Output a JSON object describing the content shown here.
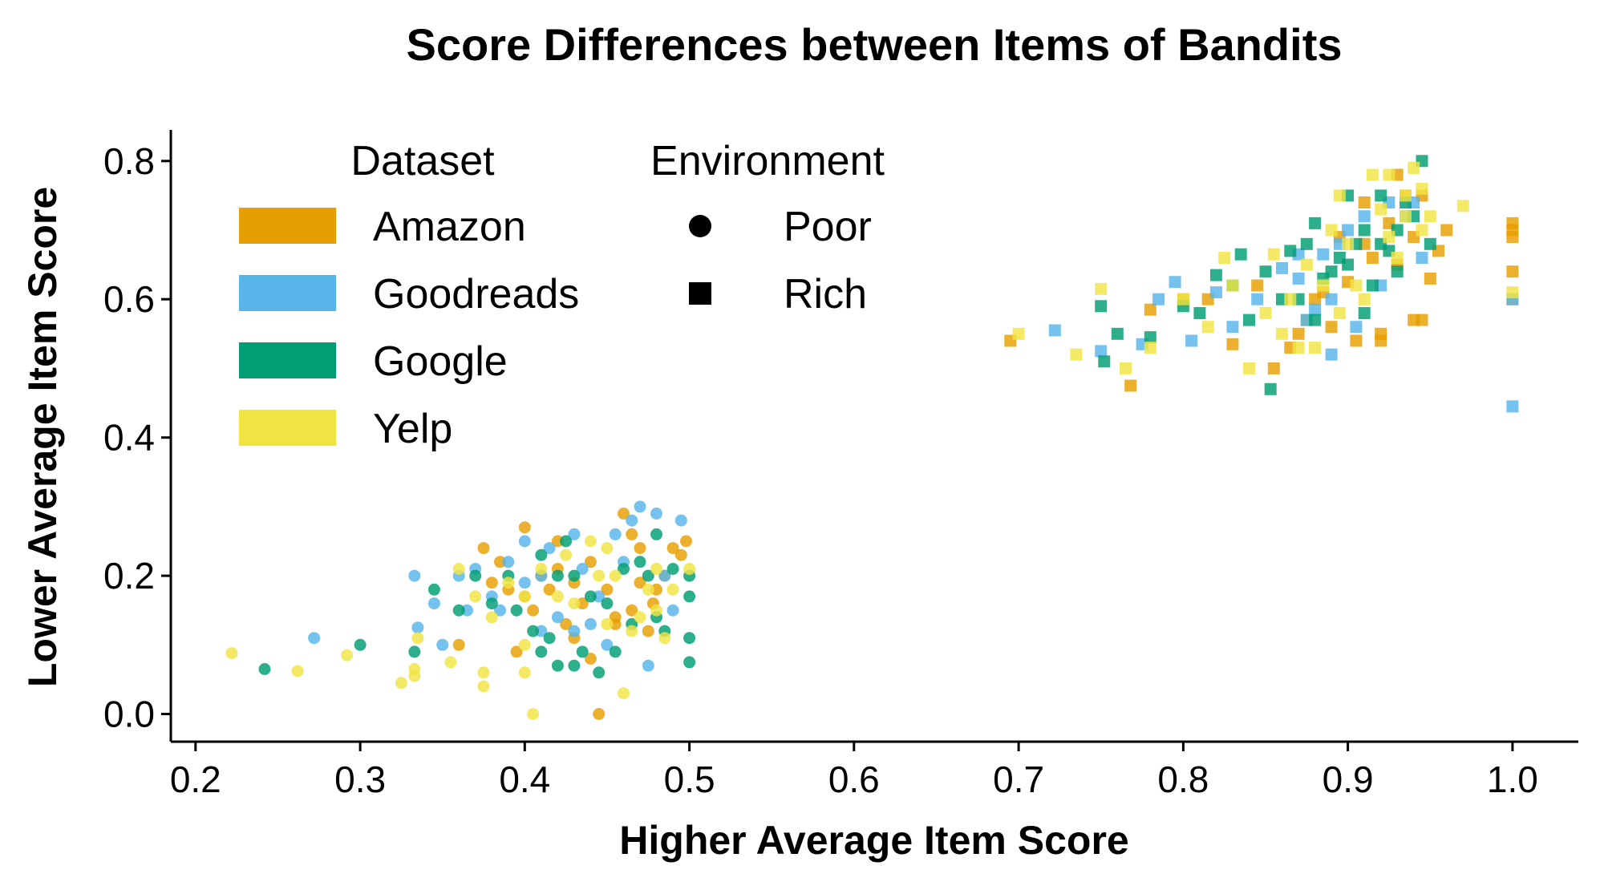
{
  "chart_data": {
    "type": "scatter",
    "title": "Score Differences between Items of Bandits",
    "xlabel": "Higher Average Item Score",
    "ylabel": "Lower Average Item Score",
    "xlim": [
      0.185,
      1.04
    ],
    "ylim": [
      -0.04,
      0.845
    ],
    "xticks": [
      "0.2",
      "0.3",
      "0.4",
      "0.5",
      "0.6",
      "0.7",
      "0.8",
      "0.9",
      "1.0"
    ],
    "yticks": [
      "0.0",
      "0.2",
      "0.4",
      "0.6",
      "0.8"
    ],
    "grid": false,
    "legend": {
      "placement": "top-left",
      "dataset_title": "Dataset",
      "environment_title": "Environment",
      "datasets": [
        {
          "name": "Amazon",
          "color": "#E69F00"
        },
        {
          "name": "Goodreads",
          "color": "#56B4E9"
        },
        {
          "name": "Google",
          "color": "#009E73"
        },
        {
          "name": "Yelp",
          "color": "#F0E442"
        }
      ],
      "environments": [
        {
          "name": "Poor",
          "marker": "circle"
        },
        {
          "name": "Rich",
          "marker": "square"
        }
      ]
    },
    "series": [
      {
        "name": "Amazon",
        "environment": "Poor",
        "color": "#E69F00",
        "points": [
          [
            0.375,
            0.24
          ],
          [
            0.385,
            0.22
          ],
          [
            0.39,
            0.18
          ],
          [
            0.4,
            0.17
          ],
          [
            0.405,
            0.15
          ],
          [
            0.41,
            0.2
          ],
          [
            0.415,
            0.18
          ],
          [
            0.42,
            0.21
          ],
          [
            0.425,
            0.13
          ],
          [
            0.43,
            0.19
          ],
          [
            0.435,
            0.16
          ],
          [
            0.44,
            0.22
          ],
          [
            0.445,
            0.0
          ],
          [
            0.45,
            0.18
          ],
          [
            0.455,
            0.14
          ],
          [
            0.46,
            0.29
          ],
          [
            0.465,
            0.15
          ],
          [
            0.47,
            0.24
          ],
          [
            0.475,
            0.12
          ],
          [
            0.48,
            0.18
          ],
          [
            0.485,
            0.2
          ],
          [
            0.49,
            0.24
          ],
          [
            0.495,
            0.23
          ],
          [
            0.498,
            0.25
          ],
          [
            0.4,
            0.27
          ],
          [
            0.42,
            0.25
          ],
          [
            0.43,
            0.11
          ],
          [
            0.44,
            0.08
          ],
          [
            0.455,
            0.13
          ],
          [
            0.47,
            0.19
          ],
          [
            0.36,
            0.1
          ],
          [
            0.38,
            0.19
          ],
          [
            0.395,
            0.09
          ],
          [
            0.465,
            0.26
          ],
          [
            0.478,
            0.16
          ]
        ]
      },
      {
        "name": "Goodreads",
        "environment": "Poor",
        "color": "#56B4E9",
        "points": [
          [
            0.272,
            0.11
          ],
          [
            0.333,
            0.2
          ],
          [
            0.335,
            0.125
          ],
          [
            0.345,
            0.16
          ],
          [
            0.35,
            0.1
          ],
          [
            0.36,
            0.2
          ],
          [
            0.365,
            0.15
          ],
          [
            0.37,
            0.21
          ],
          [
            0.38,
            0.17
          ],
          [
            0.39,
            0.22
          ],
          [
            0.4,
            0.25
          ],
          [
            0.41,
            0.2
          ],
          [
            0.415,
            0.24
          ],
          [
            0.42,
            0.14
          ],
          [
            0.43,
            0.26
          ],
          [
            0.435,
            0.21
          ],
          [
            0.44,
            0.13
          ],
          [
            0.445,
            0.17
          ],
          [
            0.455,
            0.26
          ],
          [
            0.46,
            0.22
          ],
          [
            0.47,
            0.3
          ],
          [
            0.475,
            0.07
          ],
          [
            0.48,
            0.29
          ],
          [
            0.485,
            0.2
          ],
          [
            0.49,
            0.15
          ],
          [
            0.495,
            0.28
          ],
          [
            0.43,
            0.12
          ],
          [
            0.45,
            0.1
          ],
          [
            0.465,
            0.28
          ],
          [
            0.41,
            0.12
          ],
          [
            0.4,
            0.19
          ],
          [
            0.385,
            0.15
          ]
        ]
      },
      {
        "name": "Google",
        "environment": "Poor",
        "color": "#009E73",
        "points": [
          [
            0.242,
            0.065
          ],
          [
            0.3,
            0.1
          ],
          [
            0.333,
            0.09
          ],
          [
            0.345,
            0.18
          ],
          [
            0.36,
            0.15
          ],
          [
            0.37,
            0.2
          ],
          [
            0.38,
            0.16
          ],
          [
            0.39,
            0.2
          ],
          [
            0.395,
            0.15
          ],
          [
            0.405,
            0.12
          ],
          [
            0.41,
            0.09
          ],
          [
            0.41,
            0.23
          ],
          [
            0.415,
            0.11
          ],
          [
            0.42,
            0.07
          ],
          [
            0.425,
            0.25
          ],
          [
            0.43,
            0.2
          ],
          [
            0.435,
            0.09
          ],
          [
            0.44,
            0.17
          ],
          [
            0.445,
            0.06
          ],
          [
            0.45,
            0.16
          ],
          [
            0.455,
            0.09
          ],
          [
            0.46,
            0.21
          ],
          [
            0.465,
            0.13
          ],
          [
            0.47,
            0.22
          ],
          [
            0.475,
            0.2
          ],
          [
            0.48,
            0.26
          ],
          [
            0.485,
            0.12
          ],
          [
            0.49,
            0.21
          ],
          [
            0.5,
            0.2
          ],
          [
            0.5,
            0.17
          ],
          [
            0.5,
            0.11
          ],
          [
            0.5,
            0.075
          ],
          [
            0.42,
            0.2
          ],
          [
            0.43,
            0.07
          ],
          [
            0.48,
            0.14
          ]
        ]
      },
      {
        "name": "Yelp",
        "environment": "Poor",
        "color": "#F0E442",
        "points": [
          [
            0.222,
            0.088
          ],
          [
            0.262,
            0.062
          ],
          [
            0.292,
            0.085
          ],
          [
            0.325,
            0.045
          ],
          [
            0.333,
            0.065
          ],
          [
            0.333,
            0.055
          ],
          [
            0.335,
            0.11
          ],
          [
            0.355,
            0.075
          ],
          [
            0.36,
            0.21
          ],
          [
            0.37,
            0.17
          ],
          [
            0.375,
            0.04
          ],
          [
            0.375,
            0.06
          ],
          [
            0.38,
            0.14
          ],
          [
            0.39,
            0.19
          ],
          [
            0.4,
            0.17
          ],
          [
            0.4,
            0.06
          ],
          [
            0.405,
            0.0
          ],
          [
            0.41,
            0.21
          ],
          [
            0.42,
            0.17
          ],
          [
            0.425,
            0.23
          ],
          [
            0.43,
            0.16
          ],
          [
            0.44,
            0.25
          ],
          [
            0.445,
            0.2
          ],
          [
            0.45,
            0.13
          ],
          [
            0.455,
            0.2
          ],
          [
            0.46,
            0.03
          ],
          [
            0.465,
            0.12
          ],
          [
            0.47,
            0.14
          ],
          [
            0.475,
            0.18
          ],
          [
            0.48,
            0.15
          ],
          [
            0.485,
            0.11
          ],
          [
            0.49,
            0.18
          ],
          [
            0.5,
            0.21
          ],
          [
            0.4,
            0.1
          ],
          [
            0.45,
            0.24
          ],
          [
            0.48,
            0.21
          ]
        ]
      },
      {
        "name": "Amazon",
        "environment": "Rich",
        "color": "#E69F00",
        "points": [
          [
            0.695,
            0.54
          ],
          [
            0.768,
            0.475
          ],
          [
            0.78,
            0.585
          ],
          [
            0.8,
            0.6
          ],
          [
            0.815,
            0.6
          ],
          [
            0.83,
            0.535
          ],
          [
            0.845,
            0.62
          ],
          [
            0.855,
            0.5
          ],
          [
            0.865,
            0.53
          ],
          [
            0.87,
            0.55
          ],
          [
            0.875,
            0.57
          ],
          [
            0.88,
            0.6
          ],
          [
            0.885,
            0.61
          ],
          [
            0.89,
            0.56
          ],
          [
            0.9,
            0.625
          ],
          [
            0.905,
            0.54
          ],
          [
            0.91,
            0.68
          ],
          [
            0.915,
            0.66
          ],
          [
            0.92,
            0.55
          ],
          [
            0.925,
            0.71
          ],
          [
            0.93,
            0.65
          ],
          [
            0.935,
            0.75
          ],
          [
            0.94,
            0.69
          ],
          [
            0.945,
            0.57
          ],
          [
            0.945,
            0.75
          ],
          [
            0.95,
            0.63
          ],
          [
            0.955,
            0.67
          ],
          [
            0.96,
            0.7
          ],
          [
            1.0,
            0.71
          ],
          [
            1.0,
            0.7
          ],
          [
            1.0,
            0.69
          ],
          [
            1.0,
            0.64
          ],
          [
            1.0,
            0.6
          ],
          [
            0.91,
            0.74
          ],
          [
            0.92,
            0.54
          ],
          [
            0.93,
            0.78
          ],
          [
            0.94,
            0.57
          ],
          [
            0.895,
            0.69
          ]
        ]
      },
      {
        "name": "Goodreads",
        "environment": "Rich",
        "color": "#56B4E9",
        "points": [
          [
            0.722,
            0.555
          ],
          [
            0.75,
            0.525
          ],
          [
            0.775,
            0.535
          ],
          [
            0.785,
            0.6
          ],
          [
            0.795,
            0.625
          ],
          [
            0.805,
            0.54
          ],
          [
            0.82,
            0.61
          ],
          [
            0.83,
            0.56
          ],
          [
            0.845,
            0.6
          ],
          [
            0.86,
            0.645
          ],
          [
            0.87,
            0.665
          ],
          [
            0.875,
            0.57
          ],
          [
            0.88,
            0.585
          ],
          [
            0.885,
            0.665
          ],
          [
            0.89,
            0.52
          ],
          [
            0.895,
            0.68
          ],
          [
            0.9,
            0.7
          ],
          [
            0.905,
            0.56
          ],
          [
            0.91,
            0.72
          ],
          [
            0.92,
            0.62
          ],
          [
            0.925,
            0.74
          ],
          [
            0.935,
            0.72
          ],
          [
            0.94,
            0.74
          ],
          [
            0.945,
            0.66
          ],
          [
            1.0,
            0.6
          ],
          [
            1.0,
            0.445
          ],
          [
            0.87,
            0.63
          ],
          [
            0.89,
            0.6
          ]
        ]
      },
      {
        "name": "Google",
        "environment": "Rich",
        "color": "#009E73",
        "points": [
          [
            0.75,
            0.59
          ],
          [
            0.752,
            0.51
          ],
          [
            0.76,
            0.55
          ],
          [
            0.78,
            0.545
          ],
          [
            0.8,
            0.59
          ],
          [
            0.81,
            0.58
          ],
          [
            0.82,
            0.635
          ],
          [
            0.83,
            0.62
          ],
          [
            0.835,
            0.665
          ],
          [
            0.84,
            0.57
          ],
          [
            0.85,
            0.64
          ],
          [
            0.853,
            0.47
          ],
          [
            0.86,
            0.6
          ],
          [
            0.865,
            0.67
          ],
          [
            0.875,
            0.68
          ],
          [
            0.88,
            0.57
          ],
          [
            0.885,
            0.63
          ],
          [
            0.89,
            0.64
          ],
          [
            0.895,
            0.66
          ],
          [
            0.9,
            0.65
          ],
          [
            0.905,
            0.68
          ],
          [
            0.91,
            0.7
          ],
          [
            0.915,
            0.62
          ],
          [
            0.92,
            0.68
          ],
          [
            0.925,
            0.67
          ],
          [
            0.93,
            0.7
          ],
          [
            0.935,
            0.74
          ],
          [
            0.94,
            0.72
          ],
          [
            0.945,
            0.8
          ],
          [
            0.9,
            0.75
          ],
          [
            0.91,
            0.58
          ],
          [
            0.92,
            0.75
          ],
          [
            0.93,
            0.64
          ],
          [
            0.95,
            0.68
          ],
          [
            0.88,
            0.71
          ],
          [
            0.87,
            0.6
          ]
        ]
      },
      {
        "name": "Yelp",
        "environment": "Rich",
        "color": "#F0E442",
        "points": [
          [
            0.7,
            0.55
          ],
          [
            0.735,
            0.52
          ],
          [
            0.75,
            0.615
          ],
          [
            0.765,
            0.5
          ],
          [
            0.78,
            0.53
          ],
          [
            0.8,
            0.6
          ],
          [
            0.815,
            0.56
          ],
          [
            0.825,
            0.66
          ],
          [
            0.84,
            0.5
          ],
          [
            0.85,
            0.58
          ],
          [
            0.855,
            0.665
          ],
          [
            0.86,
            0.55
          ],
          [
            0.865,
            0.6
          ],
          [
            0.875,
            0.65
          ],
          [
            0.88,
            0.53
          ],
          [
            0.885,
            0.62
          ],
          [
            0.89,
            0.7
          ],
          [
            0.895,
            0.75
          ],
          [
            0.9,
            0.68
          ],
          [
            0.905,
            0.62
          ],
          [
            0.915,
            0.78
          ],
          [
            0.92,
            0.73
          ],
          [
            0.925,
            0.78
          ],
          [
            0.93,
            0.66
          ],
          [
            0.935,
            0.72
          ],
          [
            0.94,
            0.79
          ],
          [
            0.945,
            0.7
          ],
          [
            0.95,
            0.72
          ],
          [
            0.97,
            0.735
          ],
          [
            1.0,
            0.61
          ],
          [
            0.91,
            0.6
          ],
          [
            0.925,
            0.69
          ],
          [
            0.935,
            0.75
          ],
          [
            0.895,
            0.58
          ],
          [
            0.87,
            0.53
          ],
          [
            0.83,
            0.62
          ],
          [
            0.945,
            0.76
          ]
        ]
      }
    ]
  }
}
